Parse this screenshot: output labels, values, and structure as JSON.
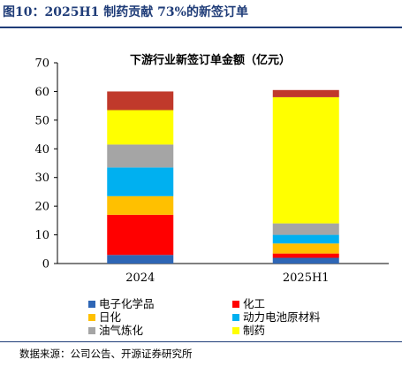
{
  "figure": {
    "caption": "图10：2025H1 制药贡献 73%的新签订单",
    "source": "数据来源：公司公告、开源证券研究所"
  },
  "chart_data": {
    "type": "bar",
    "stacked": true,
    "title": "下游行业新签订单金额（亿元）",
    "categories": [
      "2024",
      "2025H1"
    ],
    "ylim": [
      0,
      70
    ],
    "yticks": [
      0,
      10,
      20,
      30,
      40,
      50,
      60,
      70
    ],
    "grid": false,
    "legend_position": "bottom",
    "series": [
      {
        "name": "电子化学品",
        "color": "#2e66b5",
        "values": [
          3,
          2
        ]
      },
      {
        "name": "化工",
        "color": "#ff0000",
        "values": [
          14,
          1.5
        ]
      },
      {
        "name": "日化",
        "color": "#ffc000",
        "values": [
          6.5,
          3.5
        ]
      },
      {
        "name": "动力电池原材料",
        "color": "#00b0f0",
        "values": [
          10,
          3
        ]
      },
      {
        "name": "油气炼化",
        "color": "#a5a5a5",
        "values": [
          8,
          4
        ]
      },
      {
        "name": "制药",
        "color": "#ffff00",
        "values": [
          12,
          44
        ]
      },
      {
        "name": "",
        "color": "#c0392b",
        "values": [
          6.5,
          2.5
        ]
      }
    ]
  }
}
